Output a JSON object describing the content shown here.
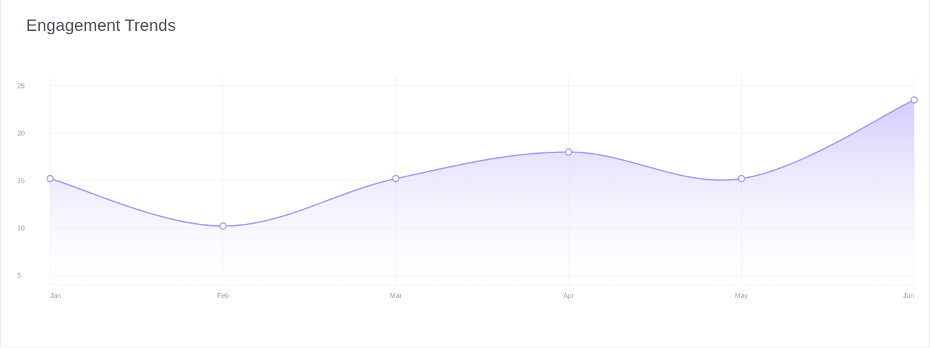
{
  "title": "Engagement Trends",
  "chart_data": {
    "type": "area",
    "title": "Engagement Trends",
    "xlabel": "",
    "ylabel": "",
    "categories": [
      "Jan",
      "Feb",
      "Mar",
      "Apr",
      "May",
      "Jun"
    ],
    "series": [
      {
        "values": [
          15.2,
          10.2,
          15.2,
          18.0,
          15.2,
          23.5
        ]
      }
    ],
    "ylim": [
      4,
      26
    ],
    "yticks": [
      5,
      10,
      15,
      20,
      25
    ],
    "grid": true,
    "legend": "none",
    "colors": {
      "line": "#a29bf0",
      "fill": "#c7c2ff",
      "grid": "#edf0f4",
      "marker_fill": "#ffffff"
    }
  }
}
